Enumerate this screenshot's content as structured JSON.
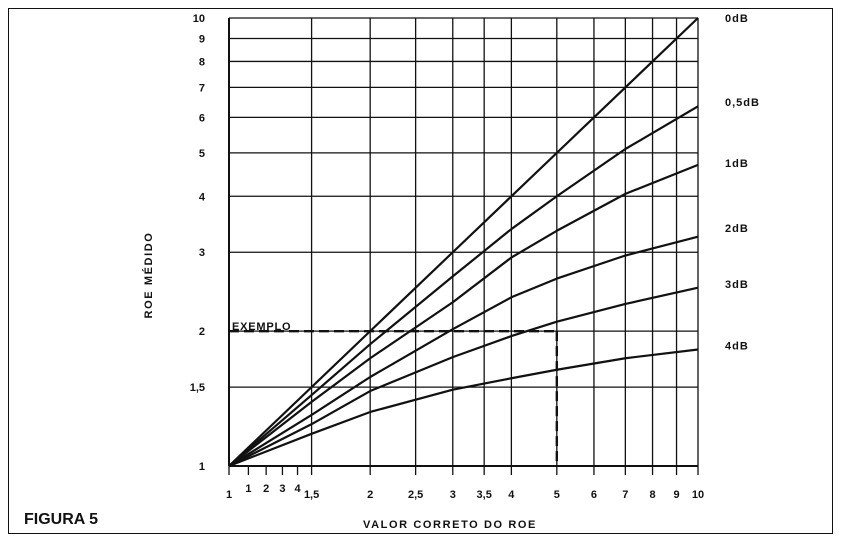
{
  "figure_label": "FIGURA 5",
  "chart_data": {
    "type": "line",
    "x_scale": "log",
    "y_scale": "log",
    "xlim": [
      1,
      10
    ],
    "ylim": [
      1,
      10
    ],
    "grid": true,
    "xlabel": "VALOR CORRETO DO ROE",
    "ylabel": "ROE MÉDIDO",
    "x_grid_values": [
      1,
      1.5,
      2,
      2.5,
      3,
      3.5,
      4,
      5,
      6,
      7,
      8,
      9,
      10
    ],
    "x_ticks": [
      {
        "value": 1,
        "label": "1"
      },
      {
        "value": 1.5,
        "label": "1,5"
      },
      {
        "value": 2,
        "label": "2"
      },
      {
        "value": 2.5,
        "label": "2,5"
      },
      {
        "value": 3,
        "label": "3"
      },
      {
        "value": 3.5,
        "label": "3,5"
      },
      {
        "value": 4,
        "label": "4"
      },
      {
        "value": 5,
        "label": "5"
      },
      {
        "value": 6,
        "label": "6"
      },
      {
        "value": 7,
        "label": "7"
      },
      {
        "value": 8,
        "label": "8"
      },
      {
        "value": 9,
        "label": "9"
      },
      {
        "value": 10,
        "label": "10"
      }
    ],
    "x_minor_ticks": [
      {
        "value": 1.1,
        "label": "1"
      },
      {
        "value": 1.2,
        "label": "2"
      },
      {
        "value": 1.3,
        "label": "3"
      },
      {
        "value": 1.4,
        "label": "4"
      }
    ],
    "y_grid_values": [
      1,
      1.5,
      2,
      3,
      4,
      5,
      6,
      7,
      8,
      9,
      10
    ],
    "y_ticks": [
      {
        "value": 1,
        "label": "1"
      },
      {
        "value": 1.5,
        "label": "1,5"
      },
      {
        "value": 2,
        "label": "2"
      },
      {
        "value": 3,
        "label": "3"
      },
      {
        "value": 4,
        "label": "4"
      },
      {
        "value": 5,
        "label": "5"
      },
      {
        "value": 6,
        "label": "6"
      },
      {
        "value": 7,
        "label": "7"
      },
      {
        "value": 8,
        "label": "8"
      },
      {
        "value": 9,
        "label": "9"
      },
      {
        "value": 10,
        "label": "10"
      }
    ],
    "series": [
      {
        "name": "0dB",
        "x": [
          1,
          1.5,
          2,
          3,
          4,
          5,
          7,
          10
        ],
        "y": [
          1,
          1.5,
          2,
          3,
          4,
          5,
          7,
          10
        ]
      },
      {
        "name": "0,5dB",
        "x": [
          1,
          1.5,
          2,
          3,
          4,
          5,
          7,
          10
        ],
        "y": [
          1,
          1.44,
          1.87,
          2.65,
          3.38,
          4.0,
          5.1,
          6.35
        ]
      },
      {
        "name": "1dB",
        "x": [
          1,
          1.5,
          2,
          3,
          4,
          5,
          7,
          10
        ],
        "y": [
          1,
          1.39,
          1.74,
          2.32,
          2.92,
          3.35,
          4.05,
          4.7
        ]
      },
      {
        "name": "2dB",
        "x": [
          1,
          1.5,
          2,
          3,
          4,
          5,
          7,
          10
        ],
        "y": [
          1,
          1.3,
          1.58,
          2.02,
          2.38,
          2.62,
          2.95,
          3.25
        ]
      },
      {
        "name": "3dB",
        "x": [
          1,
          1.5,
          2,
          3,
          4,
          5,
          7,
          10
        ],
        "y": [
          1,
          1.24,
          1.47,
          1.75,
          1.95,
          2.1,
          2.3,
          2.5
        ]
      },
      {
        "name": "4dB",
        "x": [
          1,
          1.5,
          2,
          3,
          4,
          5,
          7,
          10
        ],
        "y": [
          1,
          1.18,
          1.32,
          1.48,
          1.57,
          1.64,
          1.74,
          1.82
        ]
      }
    ],
    "series_labels": [
      {
        "text": "0dB",
        "y": 10
      },
      {
        "text": "0,5dB",
        "y": 6.5
      },
      {
        "text": "1dB",
        "y": 4.75
      },
      {
        "text": "2dB",
        "y": 3.4
      },
      {
        "text": "3dB",
        "y": 2.55
      },
      {
        "text": "4dB",
        "y": 1.86
      }
    ],
    "example": {
      "label": "EXEMPLO",
      "x": 5,
      "y": 2
    }
  }
}
